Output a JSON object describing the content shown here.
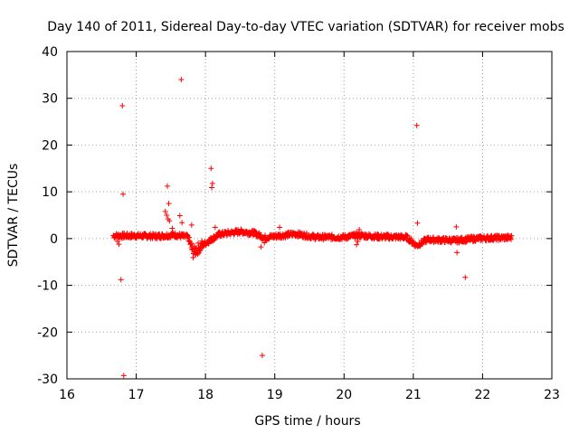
{
  "chart_data": {
    "type": "scatter",
    "title": "Day 140 of 2011, Sidereal Day-to-day VTEC variation (SDTVAR) for receiver mobs",
    "xlabel": "GPS time / hours",
    "ylabel": "SDTVAR / TECUs",
    "xlim": [
      16,
      23
    ],
    "ylim": [
      -30,
      40
    ],
    "xticks": [
      16,
      17,
      18,
      19,
      20,
      21,
      22,
      23
    ],
    "yticks": [
      -30,
      -20,
      -10,
      0,
      10,
      20,
      30,
      40
    ],
    "grid": true,
    "marker": "plus",
    "color": "#ff0000",
    "outliers": [
      {
        "x": 16.8,
        "y": 28.4
      },
      {
        "x": 16.81,
        "y": 9.5
      },
      {
        "x": 16.78,
        "y": -8.8
      },
      {
        "x": 16.82,
        "y": -29.3
      },
      {
        "x": 16.75,
        "y": -1.2
      },
      {
        "x": 16.73,
        "y": -0.6
      },
      {
        "x": 17.65,
        "y": 34.0
      },
      {
        "x": 17.45,
        "y": 11.2
      },
      {
        "x": 17.47,
        "y": 7.5
      },
      {
        "x": 17.42,
        "y": 5.8
      },
      {
        "x": 17.44,
        "y": 5.0
      },
      {
        "x": 17.46,
        "y": 4.2
      },
      {
        "x": 17.48,
        "y": 3.8
      },
      {
        "x": 17.63,
        "y": 4.9
      },
      {
        "x": 17.66,
        "y": 3.4
      },
      {
        "x": 17.8,
        "y": 2.9
      },
      {
        "x": 17.52,
        "y": 2.2
      },
      {
        "x": 18.08,
        "y": 15.0
      },
      {
        "x": 18.1,
        "y": 11.8
      },
      {
        "x": 18.09,
        "y": 10.9
      },
      {
        "x": 18.14,
        "y": 2.4
      },
      {
        "x": 18.82,
        "y": -25.0
      },
      {
        "x": 18.8,
        "y": -1.8
      },
      {
        "x": 18.85,
        "y": -0.9
      },
      {
        "x": 19.07,
        "y": 2.4
      },
      {
        "x": 20.18,
        "y": -1.3
      },
      {
        "x": 20.2,
        "y": -0.6
      },
      {
        "x": 20.22,
        "y": 1.9
      },
      {
        "x": 21.05,
        "y": 24.2
      },
      {
        "x": 21.06,
        "y": 3.3
      },
      {
        "x": 21.62,
        "y": 2.5
      },
      {
        "x": 21.63,
        "y": -3.0
      },
      {
        "x": 21.75,
        "y": -8.3
      }
    ],
    "dense_band": {
      "x_start": 16.67,
      "x_end": 22.42,
      "step": 0.006,
      "trend": [
        {
          "x": 16.67,
          "y": 0.6
        },
        {
          "x": 17.0,
          "y": 0.6
        },
        {
          "x": 17.3,
          "y": 0.5
        },
        {
          "x": 17.55,
          "y": 0.8
        },
        {
          "x": 17.75,
          "y": 0.3
        },
        {
          "x": 17.82,
          "y": -3.0
        },
        {
          "x": 17.9,
          "y": -2.0
        },
        {
          "x": 18.05,
          "y": -0.5
        },
        {
          "x": 18.2,
          "y": 0.9
        },
        {
          "x": 18.5,
          "y": 1.5
        },
        {
          "x": 18.7,
          "y": 1.2
        },
        {
          "x": 18.85,
          "y": 0.2
        },
        {
          "x": 19.0,
          "y": 0.5
        },
        {
          "x": 19.3,
          "y": 1.0
        },
        {
          "x": 19.6,
          "y": 0.3
        },
        {
          "x": 20.0,
          "y": 0.3
        },
        {
          "x": 20.2,
          "y": 0.7
        },
        {
          "x": 20.5,
          "y": 0.4
        },
        {
          "x": 20.9,
          "y": 0.3
        },
        {
          "x": 21.05,
          "y": -1.5
        },
        {
          "x": 21.2,
          "y": -0.2
        },
        {
          "x": 21.6,
          "y": -0.4
        },
        {
          "x": 22.0,
          "y": 0.1
        },
        {
          "x": 22.42,
          "y": 0.2
        }
      ],
      "spread": 0.55
    }
  }
}
